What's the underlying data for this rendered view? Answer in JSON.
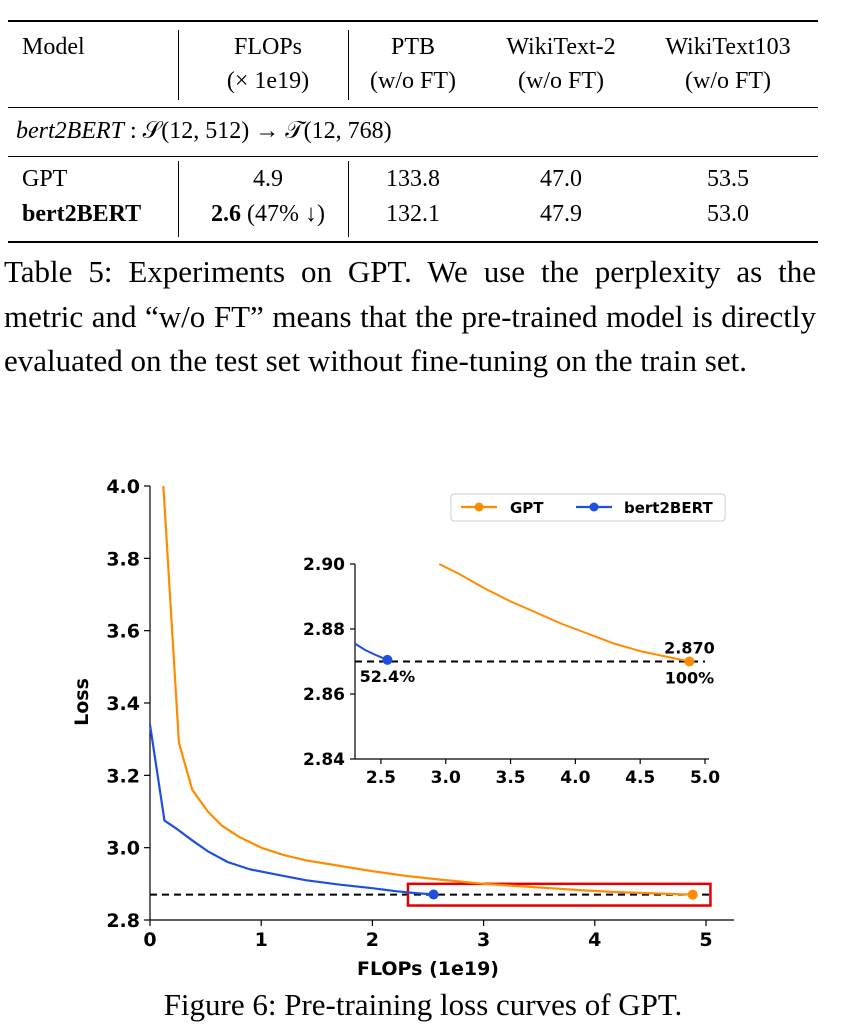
{
  "table": {
    "headers": {
      "model": "Model",
      "flops": "FLOPs",
      "flops_unit": "(× 1e19)",
      "ptb": "PTB",
      "ptb_sub": "(w/o FT)",
      "wt2": "WikiText-2",
      "wt2_sub": "(w/o FT)",
      "wt103": "WikiText103",
      "wt103_sub": "(w/o FT)"
    },
    "section_name": "bert2BERT",
    "section_setting": " : 𝒮(12, 512) → 𝒯(12, 768)",
    "rows": [
      {
        "model": "GPT",
        "flops": "4.9",
        "flops_note": "",
        "ptb": "133.8",
        "wt2": "47.0",
        "wt103": "53.5"
      },
      {
        "model": "bert2BERT",
        "flops": "2.6",
        "flops_note": " (47% ↓)",
        "ptb": "132.1",
        "wt2": "47.9",
        "wt103": "53.0"
      }
    ]
  },
  "caption_table": "Table 5: Experiments on GPT. We use the perplexity as the metric and “w/o FT” means that the pre-trained model is directly evaluated on the test set without fine-tuning on the train set.",
  "caption_figure": "Figure 6: Pre-training loss curves of GPT.",
  "chart_data": {
    "type": "line",
    "xlabel": "FLOPs (1e19)",
    "ylabel": "Loss",
    "xlim": [
      0,
      5
    ],
    "ylim": [
      2.8,
      4.0
    ],
    "xticks": [
      "0",
      "1",
      "2",
      "3",
      "4",
      "5"
    ],
    "yticks": [
      "2.8",
      "3.0",
      "3.2",
      "3.4",
      "3.6",
      "3.8",
      "4.0"
    ],
    "legend_position": "top-right",
    "grid": false,
    "series": [
      {
        "name": "GPT",
        "color": "#ff8c00",
        "x": [
          0.12,
          0.14,
          0.26,
          0.38,
          0.52,
          0.65,
          0.8,
          1.0,
          1.2,
          1.4,
          1.7,
          2.0,
          2.3,
          2.6,
          3.0,
          3.3,
          3.6,
          3.9,
          4.2,
          4.5,
          4.88
        ],
        "y": [
          4.0,
          3.9,
          3.29,
          3.16,
          3.1,
          3.06,
          3.03,
          3.0,
          2.98,
          2.965,
          2.95,
          2.935,
          2.922,
          2.912,
          2.9,
          2.894,
          2.888,
          2.882,
          2.877,
          2.874,
          2.87
        ],
        "endpoint": {
          "x": 4.88,
          "y": 2.87
        }
      },
      {
        "name": "bert2BERT",
        "color": "#1f4fe0",
        "x": [
          0.0,
          0.13,
          0.25,
          0.38,
          0.52,
          0.7,
          0.9,
          1.15,
          1.4,
          1.7,
          2.0,
          2.2,
          2.4,
          2.55
        ],
        "y": [
          3.34,
          3.075,
          3.05,
          3.02,
          2.99,
          2.96,
          2.94,
          2.925,
          2.91,
          2.898,
          2.888,
          2.88,
          2.874,
          2.871
        ],
        "endpoint": {
          "x": 2.55,
          "y": 2.8705
        }
      }
    ],
    "reference_line": {
      "y": 2.87,
      "style": "dashed",
      "color": "#000000"
    },
    "highlight_box": {
      "x": [
        2.32,
        5.04
      ],
      "y": [
        2.84,
        2.9
      ],
      "color": "#e00000"
    },
    "inset": {
      "xlim": [
        2.3,
        5.0
      ],
      "ylim": [
        2.84,
        2.9
      ],
      "xticks": [
        "2.5",
        "3.0",
        "3.5",
        "4.0",
        "4.5",
        "5.0"
      ],
      "yticks": [
        "2.84",
        "2.86",
        "2.88",
        "2.90"
      ],
      "annotations": [
        {
          "text": "2.870",
          "x": 4.88,
          "y": 2.87,
          "anchor": "above"
        },
        {
          "text": "100%",
          "x": 4.88,
          "y": 2.87,
          "anchor": "below"
        },
        {
          "text": "52.4%",
          "x": 2.55,
          "y": 2.8705,
          "anchor": "below"
        }
      ],
      "gpt_visible": {
        "x": [
          2.95,
          3.1,
          3.3,
          3.5,
          3.7,
          3.9,
          4.1,
          4.3,
          4.5,
          4.7,
          4.88
        ],
        "y": [
          2.9,
          2.897,
          2.8925,
          2.8885,
          2.885,
          2.8815,
          2.8785,
          2.8755,
          2.8732,
          2.8715,
          2.87
        ]
      },
      "bert_visible": {
        "x": [
          2.3,
          2.38,
          2.46,
          2.55
        ],
        "y": [
          2.8755,
          2.8735,
          2.872,
          2.8705
        ]
      }
    }
  }
}
